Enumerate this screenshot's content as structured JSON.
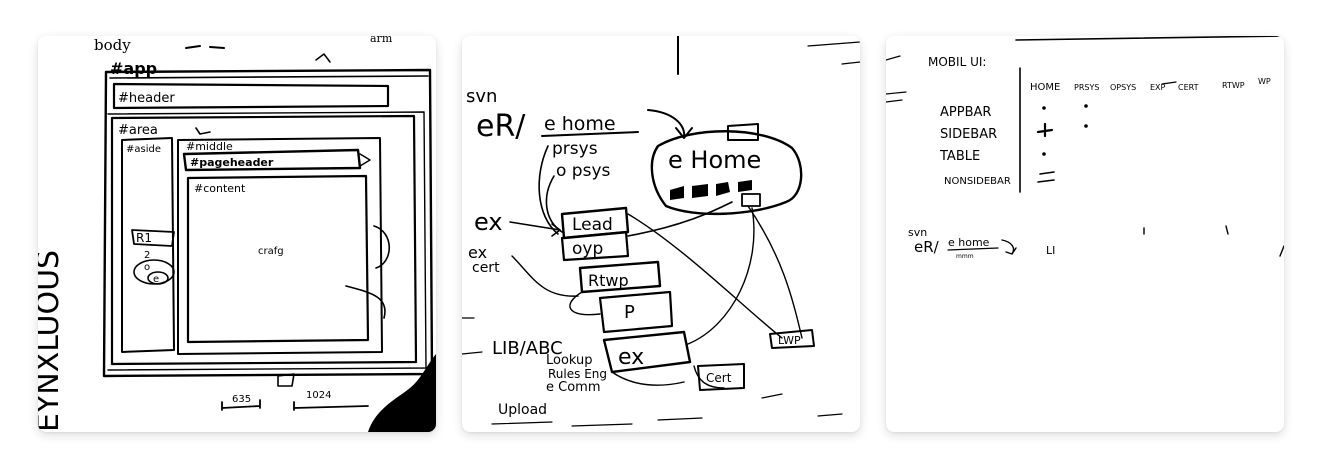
{
  "gallery": {
    "cards": [
      {
        "labels": {
          "body": "body",
          "corner": "arm",
          "app": "#app",
          "header": "#header",
          "area": "#area",
          "aside": "#aside",
          "middle": "#middle",
          "pageheader": "#pageheader",
          "content": "#content",
          "scrawl": "crafg",
          "side_r1": "R1",
          "side_2": "2",
          "side_o": "o",
          "side_e": "e",
          "width_small": "635",
          "width_large": "1024",
          "margin_text": "EYNXLUOUS"
        }
      },
      {
        "labels": {
          "svn": "svn",
          "er_prefix": "eR/",
          "e_home": "e home",
          "prsys": "prsys",
          "opsys": "o psys",
          "ex": "ex",
          "ex_cert": "ex",
          "cert_side": "cert",
          "e_home_box": "e Home",
          "lead": "Lead",
          "oyp": "oyp",
          "rtwp": "Rtwp",
          "p": "P",
          "lib_abc": "LIB/ABC",
          "lookup": "Lookup",
          "rules": "Rules Eng",
          "e_comm": "e Comm",
          "ex_box": "ex",
          "cert_box": "Cert",
          "lwp": "LWP",
          "upload": "Upload"
        }
      },
      {
        "labels": {
          "title": "MOBIL UI:",
          "columns": [
            "HOME",
            "PRSYS",
            "OPSYS",
            "EXP",
            "CERT",
            "RTWP",
            "WP"
          ],
          "rows": [
            "APPBAR",
            "SIDEBAR",
            "TABLE",
            "NONSIDEBAR"
          ],
          "svn": "svn",
          "er_prefix": "eR/",
          "e_home": "e home",
          "sub": "mmm",
          "trail": "LI"
        }
      }
    ]
  }
}
